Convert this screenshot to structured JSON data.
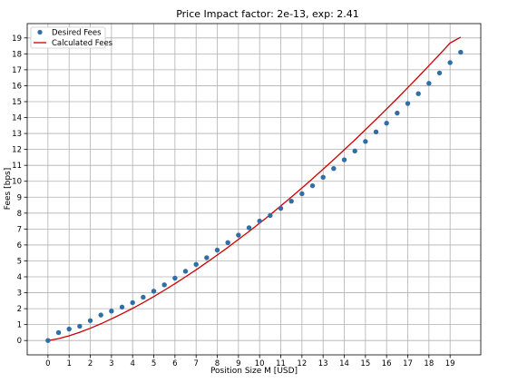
{
  "chart_data": {
    "type": "scatter",
    "title": "Price Impact factor: 2e-13, exp: 2.41",
    "xlabel": "Position Size M [USD]",
    "ylabel": "Fees [bps]",
    "xlim": [
      -0.98,
      20.45
    ],
    "ylim": [
      -0.9,
      19.9
    ],
    "xticks": [
      0,
      1,
      2,
      3,
      4,
      5,
      6,
      7,
      8,
      9,
      10,
      11,
      12,
      13,
      14,
      15,
      16,
      17,
      18,
      19
    ],
    "yticks": [
      0,
      1,
      2,
      3,
      4,
      5,
      6,
      7,
      8,
      9,
      10,
      11,
      12,
      13,
      14,
      15,
      16,
      17,
      18,
      19
    ],
    "grid": true,
    "legend_position": "upper-left",
    "series": [
      {
        "name": "Desired Fees",
        "kind": "scatter",
        "color": "#2f6ea6",
        "x": [
          0,
          0.5,
          1,
          1.5,
          2,
          2.5,
          3,
          3.5,
          4,
          4.5,
          5,
          5.5,
          6,
          6.5,
          7,
          7.5,
          8,
          8.5,
          9,
          9.5,
          10,
          10.5,
          11,
          11.5,
          12,
          12.5,
          13,
          13.5,
          14,
          14.5,
          15,
          15.5,
          16,
          16.5,
          17,
          17.5,
          18,
          18.5,
          19,
          19.5
        ],
        "y": [
          0,
          0.5,
          0.72,
          0.9,
          1.25,
          1.6,
          1.85,
          2.1,
          2.38,
          2.72,
          3.1,
          3.5,
          3.92,
          4.35,
          4.78,
          5.2,
          5.68,
          6.15,
          6.62,
          7.08,
          7.5,
          7.85,
          8.3,
          8.75,
          9.22,
          9.72,
          10.25,
          10.8,
          11.35,
          11.9,
          12.5,
          13.1,
          13.65,
          14.28,
          14.88,
          15.5,
          16.15,
          16.8,
          17.45,
          18.1
        ]
      },
      {
        "name": "Calculated Fees",
        "kind": "line",
        "color": "#cc0000",
        "x": [
          0,
          0.5,
          1,
          1.5,
          2,
          2.5,
          3,
          3.5,
          4,
          4.5,
          5,
          5.5,
          6,
          6.5,
          7,
          7.5,
          8,
          8.5,
          9,
          9.5,
          10,
          10.5,
          11,
          11.5,
          12,
          12.5,
          13,
          13.5,
          14,
          14.5,
          15,
          15.5,
          16,
          16.5,
          17,
          17.5,
          18,
          18.5,
          19,
          19.5
        ],
        "y": [
          0,
          0.12,
          0.3,
          0.52,
          0.77,
          1.05,
          1.36,
          1.68,
          2.02,
          2.38,
          2.76,
          3.16,
          3.57,
          4,
          4.44,
          4.9,
          5.37,
          5.85,
          6.35,
          6.85,
          7.37,
          7.9,
          8.45,
          9.01,
          9.58,
          10.16,
          10.76,
          11.36,
          11.98,
          12.6,
          13.24,
          13.88,
          14.54,
          15.2,
          15.88,
          16.56,
          17.26,
          17.96,
          18.68,
          19.05
        ]
      }
    ]
  }
}
